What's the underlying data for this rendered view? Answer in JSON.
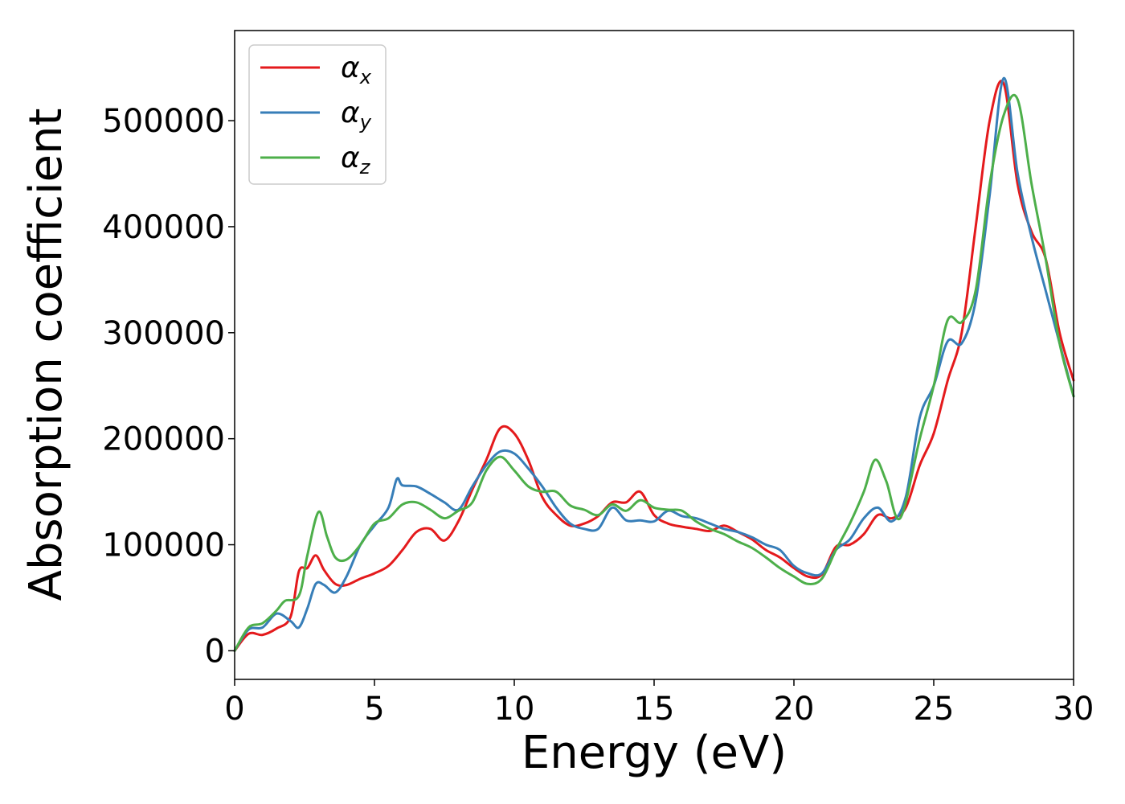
{
  "chart_data": {
    "type": "line",
    "xlabel": "Energy (eV)",
    "ylabel": "Absorption coefficient",
    "xlim": [
      0,
      30
    ],
    "ylim": [
      -27000,
      585000
    ],
    "xticks": [
      0,
      5,
      10,
      15,
      20,
      25,
      30
    ],
    "xtick_labels": [
      "0",
      "5",
      "10",
      "15",
      "20",
      "25",
      "30"
    ],
    "yticks": [
      0,
      100000,
      200000,
      300000,
      400000,
      500000
    ],
    "ytick_labels": [
      "0",
      "100000",
      "200000",
      "300000",
      "400000",
      "500000"
    ],
    "grid": false,
    "legend_position": "top-left",
    "series": [
      {
        "name": "α",
        "subscript": "x",
        "color": "#e41a1c",
        "x": [
          0,
          0.5,
          1.0,
          1.5,
          2.0,
          2.3,
          2.6,
          2.9,
          3.2,
          3.6,
          4.0,
          4.5,
          5.0,
          5.5,
          6.0,
          6.5,
          7.0,
          7.5,
          8.0,
          8.5,
          9.0,
          9.5,
          10.0,
          10.5,
          11.0,
          11.5,
          12.0,
          12.5,
          13.0,
          13.5,
          14.0,
          14.5,
          15.0,
          15.5,
          16.0,
          16.5,
          17.0,
          17.5,
          18.0,
          18.5,
          19.0,
          19.5,
          20.0,
          20.5,
          21.0,
          21.5,
          22.0,
          22.5,
          23.0,
          23.5,
          24.0,
          24.5,
          25.0,
          25.5,
          26.0,
          26.5,
          27.0,
          27.5,
          28.0,
          28.5,
          29.0,
          29.5,
          30.0
        ],
        "values": [
          0,
          16000,
          15000,
          21000,
          32000,
          75000,
          78000,
          90000,
          76000,
          63000,
          62000,
          68000,
          73000,
          80000,
          95000,
          112000,
          115000,
          104000,
          122000,
          152000,
          180000,
          210000,
          205000,
          180000,
          145000,
          128000,
          118000,
          120000,
          127000,
          140000,
          140000,
          150000,
          128000,
          120000,
          117000,
          115000,
          113000,
          118000,
          112000,
          105000,
          95000,
          88000,
          78000,
          70000,
          72000,
          98000,
          100000,
          110000,
          128000,
          125000,
          135000,
          175000,
          205000,
          255000,
          300000,
          400000,
          500000,
          535000,
          440000,
          395000,
          370000,
          300000,
          255000
        ]
      },
      {
        "name": "α",
        "subscript": "y",
        "color": "#377eb8",
        "x": [
          0,
          0.5,
          1.0,
          1.5,
          2.0,
          2.3,
          2.6,
          2.9,
          3.2,
          3.6,
          4.0,
          4.5,
          5.0,
          5.5,
          5.8,
          6.0,
          6.5,
          7.0,
          7.5,
          8.0,
          8.5,
          9.0,
          9.5,
          10.0,
          10.5,
          11.0,
          11.5,
          12.0,
          12.5,
          13.0,
          13.5,
          14.0,
          14.5,
          15.0,
          15.5,
          16.0,
          16.5,
          17.0,
          17.5,
          18.0,
          18.5,
          19.0,
          19.5,
          20.0,
          20.5,
          21.0,
          21.5,
          22.0,
          22.5,
          23.0,
          23.5,
          24.0,
          24.5,
          25.0,
          25.5,
          26.0,
          26.5,
          27.0,
          27.5,
          28.0,
          28.5,
          29.0,
          29.5,
          30.0
        ],
        "values": [
          0,
          20000,
          22000,
          35000,
          28000,
          22000,
          40000,
          63000,
          62000,
          55000,
          70000,
          100000,
          118000,
          135000,
          162000,
          156000,
          155000,
          148000,
          140000,
          133000,
          155000,
          175000,
          188000,
          186000,
          172000,
          155000,
          135000,
          120000,
          115000,
          115000,
          135000,
          123000,
          123000,
          122000,
          132000,
          127000,
          125000,
          120000,
          115000,
          112000,
          107000,
          100000,
          95000,
          80000,
          73000,
          73000,
          95000,
          105000,
          125000,
          135000,
          122000,
          145000,
          220000,
          250000,
          292000,
          290000,
          330000,
          430000,
          540000,
          450000,
          390000,
          340000,
          290000,
          240000
        ]
      },
      {
        "name": "α",
        "subscript": "z",
        "color": "#4daf4a",
        "x": [
          0,
          0.5,
          1.0,
          1.5,
          1.8,
          2.3,
          2.6,
          3.0,
          3.3,
          3.6,
          4.0,
          4.5,
          5.0,
          5.5,
          6.0,
          6.5,
          7.0,
          7.5,
          8.0,
          8.5,
          9.0,
          9.5,
          10.0,
          10.5,
          11.0,
          11.5,
          12.0,
          12.5,
          13.0,
          13.5,
          14.0,
          14.5,
          15.0,
          15.5,
          16.0,
          16.5,
          17.0,
          17.5,
          18.0,
          18.5,
          19.0,
          19.5,
          20.0,
          20.5,
          21.0,
          21.5,
          22.0,
          22.5,
          22.9,
          23.3,
          23.8,
          24.5,
          25.0,
          25.5,
          26.0,
          26.5,
          27.0,
          27.5,
          28.0,
          28.5,
          29.0,
          29.5,
          30.0
        ],
        "values": [
          0,
          22000,
          26000,
          38000,
          47000,
          52000,
          90000,
          131000,
          108000,
          88000,
          86000,
          100000,
          120000,
          125000,
          138000,
          140000,
          133000,
          125000,
          132000,
          140000,
          170000,
          183000,
          170000,
          155000,
          150000,
          150000,
          137000,
          133000,
          128000,
          138000,
          132000,
          142000,
          135000,
          133000,
          132000,
          122000,
          115000,
          110000,
          103000,
          97000,
          88000,
          78000,
          70000,
          63000,
          68000,
          95000,
          120000,
          150000,
          180000,
          160000,
          125000,
          200000,
          250000,
          312000,
          310000,
          340000,
          440000,
          505000,
          520000,
          440000,
          370000,
          290000,
          240000
        ]
      }
    ]
  }
}
